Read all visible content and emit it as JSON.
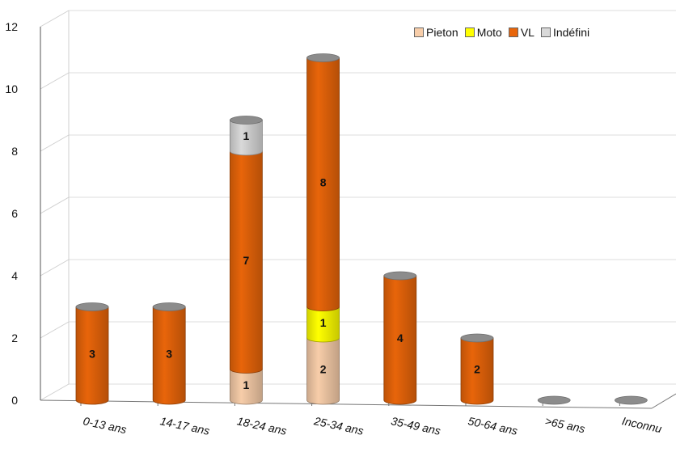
{
  "chart_data": {
    "type": "bar",
    "stacked": true,
    "style": "3d-cylinder",
    "categories": [
      "0-13 ans",
      "14-17 ans",
      "18-24 ans",
      "25-34 ans",
      "35-49 ans",
      "50-64 ans",
      ">65 ans",
      "Inconnu"
    ],
    "series": [
      {
        "name": "Pieton",
        "color": "#f7cda9",
        "values": [
          0,
          0,
          1,
          2,
          0,
          0,
          0,
          0
        ]
      },
      {
        "name": "Moto",
        "color": "#ffff00",
        "values": [
          0,
          0,
          0,
          1,
          0,
          0,
          0,
          0
        ]
      },
      {
        "name": "VL",
        "color": "#e8650a",
        "values": [
          3,
          3,
          7,
          8,
          4,
          2,
          0,
          0
        ]
      },
      {
        "name": "Indéfini",
        "color": "#d9d9d9",
        "values": [
          0,
          0,
          1,
          0,
          0,
          0,
          0,
          0
        ]
      }
    ],
    "yticks": [
      0,
      2,
      4,
      6,
      8,
      10,
      12
    ],
    "ylim": [
      0,
      12
    ],
    "grid": true,
    "legend_position": "top-right"
  }
}
